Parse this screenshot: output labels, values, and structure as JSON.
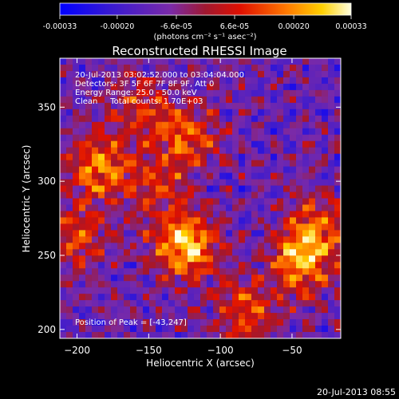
{
  "colorbar": {
    "tick_labels": [
      "-0.00033",
      "-0.00020",
      "-6.6e-05",
      "6.6e-05",
      "0.00020",
      "0.00033"
    ],
    "tick_values": [
      -0.00033,
      -0.0002,
      -6.6e-05,
      6.6e-05,
      0.0002,
      0.00033
    ],
    "range": [
      -0.00033,
      0.00033
    ],
    "units": "(photons cm⁻² s⁻¹ asec⁻²)"
  },
  "chart_data": {
    "type": "heatmap",
    "title": "Reconstructed RHESSI Image",
    "xlabel": "Heliocentric X (arcsec)",
    "ylabel": "Heliocentric Y (arcsec)",
    "xlim": [
      -212,
      -16
    ],
    "ylim": [
      194,
      383
    ],
    "x_ticks": [
      -200,
      -150,
      -100,
      -50
    ],
    "y_ticks": [
      200,
      250,
      300,
      350
    ],
    "x_tick_labels": [
      "−200",
      "−150",
      "−100",
      "−50"
    ],
    "y_tick_labels": [
      "200",
      "250",
      "300",
      "350"
    ],
    "colormap": "rhessi",
    "info_lines": [
      "20-Jul-2013 03:02:52.000 to 03:04:04.000",
      "Detectors: 3F 5F 6F 7F 8F 9F, Att 0",
      "Energy Range: 25.0 - 50.0 keV",
      "Clean     Total counts: 1.70E+03"
    ],
    "peak_label": "Position of Peak = [-43,247]",
    "peak": [
      -43,
      247
    ],
    "sources": [
      {
        "x": -125,
        "y": 256,
        "intensity": 1.0
      },
      {
        "x": -43,
        "y": 247,
        "intensity": 0.85
      },
      {
        "x": -186,
        "y": 310,
        "intensity": 0.75
      },
      {
        "x": -122,
        "y": 330,
        "intensity": 0.6
      },
      {
        "x": -82,
        "y": 212,
        "intensity": 0.55
      },
      {
        "x": -200,
        "y": 262,
        "intensity": 0.5
      },
      {
        "x": -30,
        "y": 272,
        "intensity": 0.5
      },
      {
        "x": -145,
        "y": 298,
        "intensity": 0.45
      },
      {
        "x": -155,
        "y": 350,
        "intensity": 0.4
      }
    ]
  },
  "footer": {
    "timestamp": "20-Jul-2013 08:55"
  }
}
